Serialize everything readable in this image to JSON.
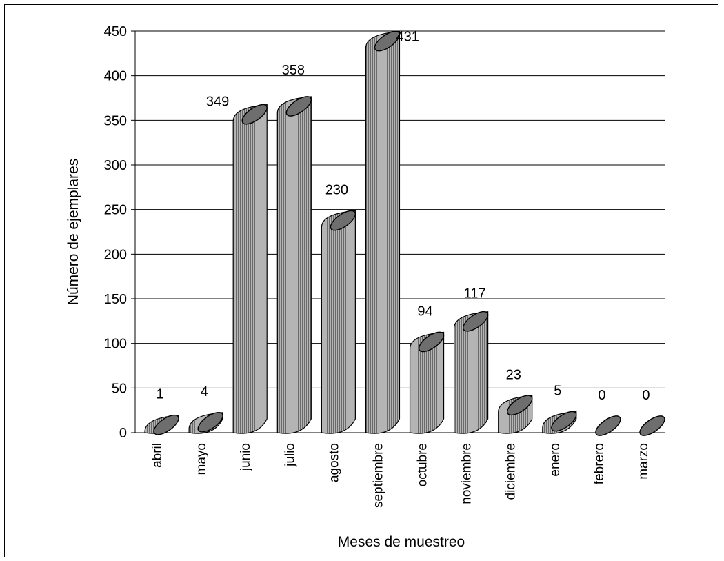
{
  "chart_data": {
    "type": "bar",
    "style": "3d-cylinder",
    "categories": [
      "abril",
      "mayo",
      "junio",
      "julio",
      "agosto",
      "septiembre",
      "octubre",
      "noviembre",
      "diciembre",
      "enero",
      "febrero",
      "marzo"
    ],
    "values": [
      1,
      4,
      349,
      358,
      230,
      431,
      94,
      117,
      23,
      5,
      0,
      0
    ],
    "data_labels": [
      "1",
      "4",
      "349",
      "358",
      "230",
      "431",
      "94",
      "117",
      "23",
      "5",
      "0",
      "0"
    ],
    "xlabel": "Meses de muestreo",
    "ylabel": "Número de ejemplares",
    "ylim": [
      0,
      450
    ],
    "yticks": [
      0,
      50,
      100,
      150,
      200,
      250,
      300,
      350,
      400,
      450
    ],
    "grid": true,
    "legend": "none",
    "colors": {
      "bar_side": "#9a9a9a",
      "bar_top": "#6e6e6e",
      "grid": "#000000"
    }
  }
}
